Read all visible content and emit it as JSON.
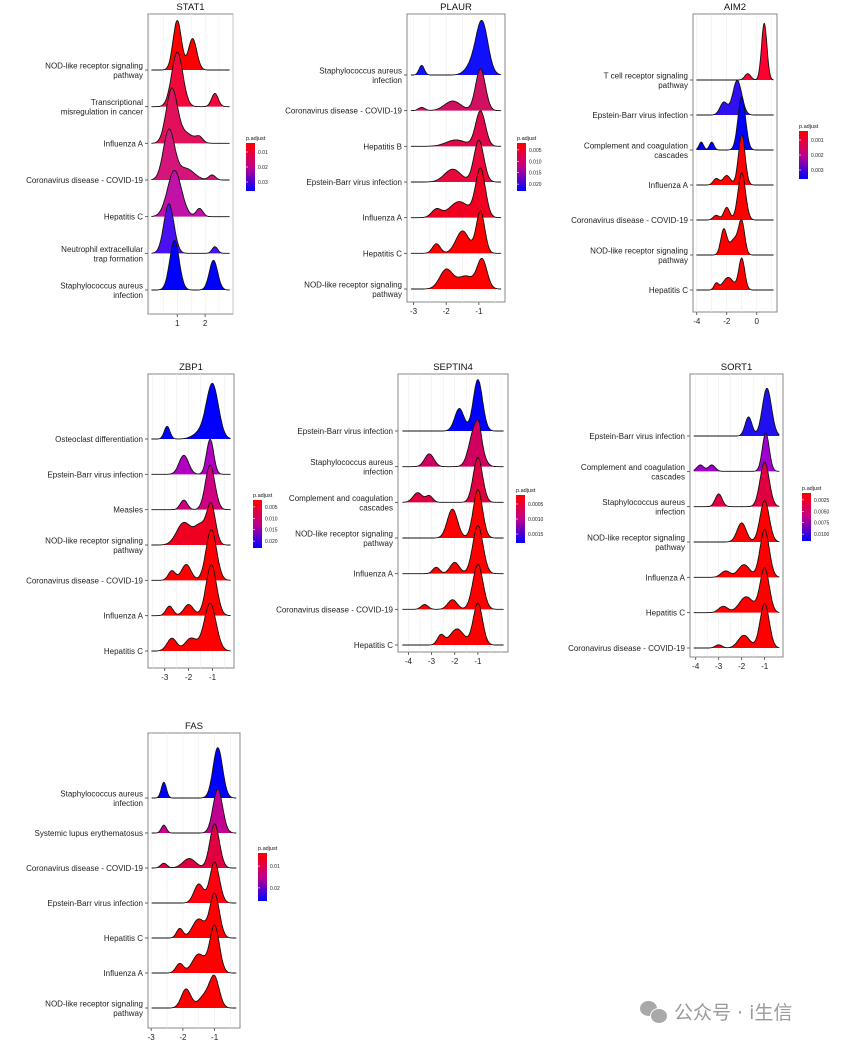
{
  "legend_title": "p.adjust",
  "watermark": "公众号 · i生信",
  "chart_data": [
    {
      "type": "ridge",
      "title": "STAT1",
      "xlim": [
        -0.05,
        3.0
      ],
      "xticks": [
        1,
        2
      ],
      "legend_ticks": [
        "0.01",
        "0.02",
        "0.03"
      ],
      "rows": [
        {
          "label": "NOD-like receptor signaling\npathway",
          "color": "#ff0000",
          "peaks": [
            [
              1.0,
              0.15,
              1.5
            ],
            [
              1.55,
              0.15,
              0.95
            ]
          ]
        },
        {
          "label": "Transcriptional\nmisregulation in cancer",
          "color": "#f2083a",
          "peaks": [
            [
              1.0,
              0.2,
              1.65
            ],
            [
              2.35,
              0.12,
              0.4
            ]
          ]
        },
        {
          "label": "Influenza A",
          "color": "#e0105a",
          "peaks": [
            [
              0.8,
              0.2,
              1.6
            ],
            [
              1.3,
              0.3,
              0.3
            ],
            [
              1.8,
              0.12,
              0.15
            ]
          ]
        },
        {
          "label": "Coronavirus disease - COVID-19",
          "color": "#d5157a",
          "peaks": [
            [
              0.7,
              0.2,
              1.5
            ],
            [
              1.3,
              0.3,
              0.35
            ],
            [
              2.25,
              0.12,
              0.15
            ]
          ]
        },
        {
          "label": "Hepatitis C",
          "color": "#c012a8",
          "peaks": [
            [
              0.9,
              0.25,
              1.4
            ],
            [
              1.8,
              0.12,
              0.25
            ]
          ]
        },
        {
          "label": "Neutrophil extracellular\ntrap formation",
          "color": "#4a10f0",
          "peaks": [
            [
              0.7,
              0.18,
              1.5
            ],
            [
              2.35,
              0.1,
              0.2
            ]
          ]
        },
        {
          "label": "Staphylococcus aureus\ninfection",
          "color": "#0000ff",
          "peaks": [
            [
              0.9,
              0.17,
              1.5
            ],
            [
              2.3,
              0.15,
              0.9
            ]
          ]
        }
      ]
    },
    {
      "type": "ridge",
      "title": "PLAUR",
      "xlim": [
        -3.2,
        -0.2
      ],
      "xticks": [
        -3,
        -2,
        -1
      ],
      "legend_ticks": [
        "0.005",
        "0.010",
        "0.015",
        "0.020"
      ],
      "rows": [
        {
          "label": "Staphylococcus aureus\ninfection",
          "color": "#1010ff",
          "peaks": [
            [
              -2.75,
              0.08,
              0.3
            ],
            [
              -0.9,
              0.18,
              1.6
            ],
            [
              -1.2,
              0.2,
              0.3
            ]
          ]
        },
        {
          "label": "Coronavirus disease - COVID-19",
          "color": "#d01060",
          "peaks": [
            [
              -2.75,
              0.1,
              0.1
            ],
            [
              -1.8,
              0.25,
              0.3
            ],
            [
              -0.95,
              0.15,
              1.3
            ]
          ]
        },
        {
          "label": "Hepatitis B",
          "color": "#e00848",
          "peaks": [
            [
              -0.95,
              0.15,
              1.1
            ],
            [
              -1.7,
              0.3,
              0.2
            ]
          ]
        },
        {
          "label": "Epstein-Barr virus infection",
          "color": "#e8083a",
          "peaks": [
            [
              -1.8,
              0.25,
              0.4
            ],
            [
              -1.0,
              0.15,
              1.3
            ]
          ]
        },
        {
          "label": "Influenza A",
          "color": "#f00020",
          "peaks": [
            [
              -2.3,
              0.15,
              0.25
            ],
            [
              -1.6,
              0.3,
              0.5
            ],
            [
              -0.95,
              0.15,
              1.5
            ]
          ]
        },
        {
          "label": "Hepatitis C",
          "color": "#ff0000",
          "peaks": [
            [
              -2.3,
              0.12,
              0.3
            ],
            [
              -1.5,
              0.2,
              0.7
            ],
            [
              -0.95,
              0.13,
              1.3
            ]
          ]
        },
        {
          "label": "NOD-like receptor signaling\npathway",
          "color": "#ff0000",
          "peaks": [
            [
              -2.0,
              0.2,
              0.6
            ],
            [
              -1.4,
              0.25,
              0.4
            ],
            [
              -0.9,
              0.15,
              0.9
            ]
          ]
        }
      ]
    },
    {
      "type": "ridge",
      "title": "AIM2",
      "xlim": [
        -4.25,
        1.35
      ],
      "xticks": [
        -4,
        -2,
        0
      ],
      "legend_ticks": [
        "0.001",
        "0.002",
        "0.003"
      ],
      "rows": [
        {
          "label": "T cell receptor signaling\npathway",
          "color": "#ff0030",
          "peaks": [
            [
              0.5,
              0.18,
              1.8
            ],
            [
              -0.6,
              0.2,
              0.2
            ]
          ]
        },
        {
          "label": "Epstein-Barr virus infection",
          "color": "#3010f0",
          "peaks": [
            [
              -2.2,
              0.25,
              0.4
            ],
            [
              -1.3,
              0.3,
              1.1
            ]
          ]
        },
        {
          "label": "Complement and coagulation\ncascades",
          "color": "#0000ff",
          "peaks": [
            [
              -3.7,
              0.15,
              0.25
            ],
            [
              -3.0,
              0.15,
              0.25
            ],
            [
              -1.0,
              0.25,
              1.7
            ]
          ]
        },
        {
          "label": "Influenza A",
          "color": "#ff0000",
          "peaks": [
            [
              -2.7,
              0.2,
              0.2
            ],
            [
              -2.0,
              0.25,
              0.3
            ],
            [
              -1.0,
              0.22,
              1.6
            ]
          ]
        },
        {
          "label": "Coronavirus disease - COVID-19",
          "color": "#ff0000",
          "peaks": [
            [
              -2.7,
              0.2,
              0.15
            ],
            [
              -2.0,
              0.2,
              0.4
            ],
            [
              -1.0,
              0.25,
              1.5
            ]
          ]
        },
        {
          "label": "NOD-like receptor signaling\npathway",
          "color": "#ff0000",
          "peaks": [
            [
              -2.2,
              0.2,
              0.8
            ],
            [
              -1.5,
              0.3,
              0.5
            ],
            [
              -1.0,
              0.2,
              1.0
            ]
          ]
        },
        {
          "label": "Hepatitis C",
          "color": "#ff0000",
          "peaks": [
            [
              -2.7,
              0.15,
              0.2
            ],
            [
              -1.9,
              0.35,
              0.4
            ],
            [
              -1.0,
              0.2,
              1.0
            ]
          ]
        }
      ]
    },
    {
      "type": "ridge",
      "title": "ZBP1",
      "xlim": [
        -3.7,
        -0.1
      ],
      "xticks": [
        -3,
        -2,
        -1
      ],
      "legend_ticks": [
        "0.005",
        "0.010",
        "0.015",
        "0.020"
      ],
      "rows": [
        {
          "label": "Osteoclast differentiation",
          "color": "#0000ff",
          "peaks": [
            [
              -2.9,
              0.12,
              0.4
            ],
            [
              -1.0,
              0.25,
              1.7
            ],
            [
              -1.5,
              0.3,
              0.2
            ]
          ]
        },
        {
          "label": "Epstein-Barr virus infection",
          "color": "#b000c0",
          "peaks": [
            [
              -2.2,
              0.2,
              0.6
            ],
            [
              -1.1,
              0.15,
              1.1
            ]
          ]
        },
        {
          "label": "Measles",
          "color": "#d00080",
          "peaks": [
            [
              -2.2,
              0.15,
              0.3
            ],
            [
              -1.1,
              0.2,
              1.4
            ]
          ]
        },
        {
          "label": "NOD-like receptor signaling\npathway",
          "color": "#f00020",
          "peaks": [
            [
              -2.2,
              0.3,
              0.7
            ],
            [
              -1.5,
              0.25,
              0.6
            ],
            [
              -1.05,
              0.18,
              1.2
            ]
          ]
        },
        {
          "label": "Coronavirus disease - COVID-19",
          "color": "#ff0000",
          "peaks": [
            [
              -2.7,
              0.15,
              0.3
            ],
            [
              -2.1,
              0.2,
              0.5
            ],
            [
              -1.05,
              0.22,
              1.6
            ]
          ]
        },
        {
          "label": "Influenza A",
          "color": "#ff0000",
          "peaks": [
            [
              -2.8,
              0.15,
              0.3
            ],
            [
              -2.0,
              0.2,
              0.35
            ],
            [
              -1.05,
              0.22,
              1.6
            ]
          ]
        },
        {
          "label": "Hepatitis C",
          "color": "#ff0000",
          "peaks": [
            [
              -2.7,
              0.2,
              0.4
            ],
            [
              -1.9,
              0.25,
              0.4
            ],
            [
              -1.1,
              0.25,
              1.5
            ]
          ]
        }
      ]
    },
    {
      "type": "ridge",
      "title": "SEPTIN4",
      "xlim": [
        -4.45,
        0.3
      ],
      "xticks": [
        -4,
        -3,
        -2,
        -1
      ],
      "legend_ticks": [
        "0.0005",
        "0.0010",
        "0.0015"
      ],
      "rows": [
        {
          "label": "Epstein-Barr virus infection",
          "color": "#0000ff",
          "peaks": [
            [
              -1.8,
              0.2,
              0.7
            ],
            [
              -1.0,
              0.2,
              1.6
            ]
          ]
        },
        {
          "label": "Staphylococcus aureus\ninfection",
          "color": "#d00060",
          "peaks": [
            [
              -3.1,
              0.2,
              0.4
            ],
            [
              -1.1,
              0.25,
              1.3
            ],
            [
              -0.95,
              0.1,
              0.3
            ]
          ]
        },
        {
          "label": "Complement and coagulation\ncascades",
          "color": "#e00040",
          "peaks": [
            [
              -3.6,
              0.2,
              0.3
            ],
            [
              -3.1,
              0.15,
              0.2
            ],
            [
              -1.0,
              0.2,
              1.4
            ]
          ]
        },
        {
          "label": "NOD-like receptor signaling\npathway",
          "color": "#ff0000",
          "peaks": [
            [
              -2.1,
              0.22,
              0.9
            ],
            [
              -1.0,
              0.2,
              1.5
            ]
          ]
        },
        {
          "label": "Influenza A",
          "color": "#ff0000",
          "peaks": [
            [
              -2.8,
              0.15,
              0.2
            ],
            [
              -2.0,
              0.2,
              0.35
            ],
            [
              -1.0,
              0.22,
              1.5
            ]
          ]
        },
        {
          "label": "Coronavirus disease - COVID-19",
          "color": "#ff0000",
          "peaks": [
            [
              -3.3,
              0.15,
              0.15
            ],
            [
              -2.1,
              0.2,
              0.3
            ],
            [
              -1.0,
              0.22,
              1.4
            ]
          ]
        },
        {
          "label": "Hepatitis C",
          "color": "#ff0000",
          "peaks": [
            [
              -2.6,
              0.15,
              0.3
            ],
            [
              -1.9,
              0.3,
              0.5
            ],
            [
              -1.0,
              0.2,
              1.3
            ]
          ]
        }
      ]
    },
    {
      "type": "ridge",
      "title": "SORT1",
      "xlim": [
        -4.25,
        -0.2
      ],
      "xticks": [
        -4,
        -3,
        -2,
        -1
      ],
      "legend_ticks": [
        "0.0025",
        "0.0050",
        "0.0075",
        "0.0100"
      ],
      "rows": [
        {
          "label": "Epstein-Barr virus infection",
          "color": "#2010f0",
          "peaks": [
            [
              -1.7,
              0.15,
              0.6
            ],
            [
              -0.9,
              0.2,
              1.5
            ]
          ]
        },
        {
          "label": "Complement and coagulation\ncascades",
          "color": "#a000d0",
          "peaks": [
            [
              -3.8,
              0.15,
              0.2
            ],
            [
              -3.3,
              0.15,
              0.2
            ],
            [
              -0.95,
              0.15,
              1.2
            ]
          ]
        },
        {
          "label": "Staphylococcus aureus\ninfection",
          "color": "#e00040",
          "peaks": [
            [
              -3.0,
              0.15,
              0.4
            ],
            [
              -1.0,
              0.2,
              1.4
            ]
          ]
        },
        {
          "label": "NOD-like receptor signaling\npathway",
          "color": "#ff0000",
          "peaks": [
            [
              -2.0,
              0.2,
              0.6
            ],
            [
              -1.0,
              0.2,
              1.3
            ]
          ]
        },
        {
          "label": "Influenza A",
          "color": "#ff0000",
          "peaks": [
            [
              -2.7,
              0.2,
              0.2
            ],
            [
              -1.9,
              0.25,
              0.4
            ],
            [
              -1.0,
              0.2,
              1.5
            ]
          ]
        },
        {
          "label": "Hepatitis C",
          "color": "#ff0000",
          "peaks": [
            [
              -2.8,
              0.2,
              0.2
            ],
            [
              -1.8,
              0.3,
              0.5
            ],
            [
              -1.0,
              0.2,
              1.4
            ]
          ]
        },
        {
          "label": "Coronavirus disease - COVID-19",
          "color": "#ff0000",
          "peaks": [
            [
              -3.0,
              0.15,
              0.1
            ],
            [
              -1.9,
              0.25,
              0.4
            ],
            [
              -1.0,
              0.2,
              1.4
            ]
          ]
        }
      ]
    },
    {
      "type": "ridge",
      "title": "FAS",
      "xlim": [
        -3.1,
        -0.2
      ],
      "xticks": [
        -3,
        -2,
        -1
      ],
      "legend_ticks": [
        "0.01",
        "0.02"
      ],
      "rows": [
        {
          "label": "Staphylococcus aureus\ninfection",
          "color": "#0000ff",
          "peaks": [
            [
              -2.6,
              0.08,
              0.5
            ],
            [
              -0.9,
              0.15,
              1.6
            ]
          ]
        },
        {
          "label": "Systemic lupus erythematosus",
          "color": "#c00090",
          "peaks": [
            [
              -2.6,
              0.08,
              0.25
            ],
            [
              -0.9,
              0.15,
              1.4
            ]
          ]
        },
        {
          "label": "Coronavirus disease - COVID-19",
          "color": "#e00040",
          "peaks": [
            [
              -2.6,
              0.1,
              0.15
            ],
            [
              -1.8,
              0.2,
              0.3
            ],
            [
              -1.0,
              0.15,
              1.4
            ]
          ]
        },
        {
          "label": "Epstein-Barr virus infection",
          "color": "#ff0010",
          "peaks": [
            [
              -1.5,
              0.15,
              0.6
            ],
            [
              -1.0,
              0.15,
              1.3
            ]
          ]
        },
        {
          "label": "Hepatitis C",
          "color": "#ff0000",
          "peaks": [
            [
              -2.1,
              0.1,
              0.3
            ],
            [
              -1.5,
              0.2,
              0.6
            ],
            [
              -1.0,
              0.15,
              1.4
            ]
          ]
        },
        {
          "label": "Influenza A",
          "color": "#ff0000",
          "peaks": [
            [
              -2.1,
              0.12,
              0.3
            ],
            [
              -1.5,
              0.2,
              0.6
            ],
            [
              -1.0,
              0.15,
              1.5
            ]
          ]
        },
        {
          "label": "NOD-like receptor signaling\npathway",
          "color": "#ff0000",
          "peaks": [
            [
              -1.9,
              0.15,
              0.6
            ],
            [
              -1.3,
              0.2,
              0.4
            ],
            [
              -1.0,
              0.15,
              0.9
            ]
          ]
        }
      ]
    }
  ]
}
